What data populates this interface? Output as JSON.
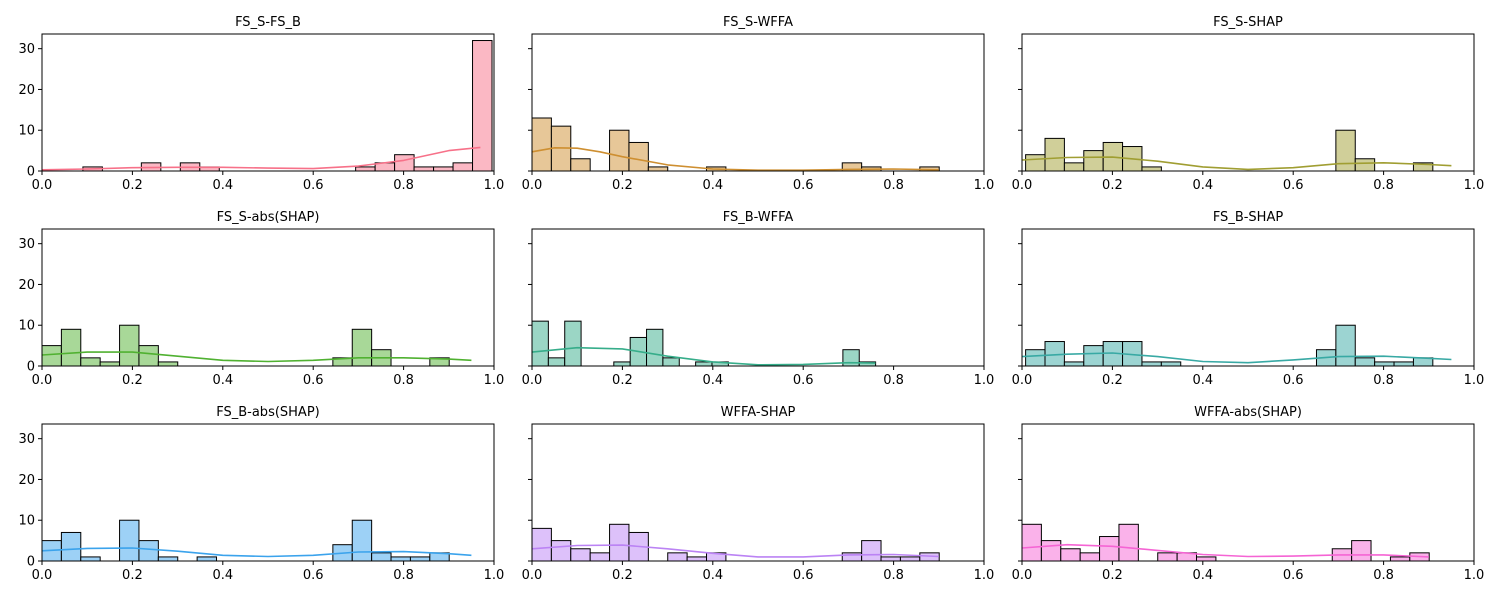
{
  "figure": {
    "x_ticks": [
      "0.0",
      "0.2",
      "0.4",
      "0.6",
      "0.8",
      "1.0"
    ],
    "y_ticks": [
      "0",
      "10",
      "20",
      "30"
    ]
  },
  "chart_data": [
    {
      "type": "histogram",
      "title": "FS_S-FS_B",
      "color": "#f77189",
      "xlim": [
        0,
        1
      ],
      "ylim": [
        0,
        33.6
      ],
      "bin_width": 0.0431,
      "bin_start": 0.0905,
      "counts": [
        1,
        0,
        0,
        2,
        0,
        2,
        1,
        0,
        0,
        0,
        0,
        0,
        0,
        0,
        1,
        2,
        4,
        1,
        1,
        2,
        32
      ],
      "kde_x": [
        0.0,
        0.1,
        0.2,
        0.3,
        0.4,
        0.5,
        0.6,
        0.7,
        0.8,
        0.9,
        0.97
      ],
      "kde_y": [
        0.3,
        0.5,
        0.8,
        0.9,
        0.9,
        0.7,
        0.6,
        1.2,
        2.6,
        5.0,
        5.8
      ]
    },
    {
      "type": "histogram",
      "title": "FS_S-WFFA",
      "color": "#ce8f31",
      "xlim": [
        0,
        1
      ],
      "ylim": [
        0,
        33.6
      ],
      "bin_width": 0.0429,
      "bin_start": 0.0,
      "counts": [
        13,
        11,
        3,
        0,
        10,
        7,
        1,
        0,
        0,
        1,
        0,
        0,
        0,
        0,
        0,
        0,
        2,
        1,
        0,
        0,
        1
      ],
      "kde_x": [
        0.0,
        0.05,
        0.1,
        0.15,
        0.2,
        0.3,
        0.4,
        0.5,
        0.6,
        0.7,
        0.8,
        0.9
      ],
      "kde_y": [
        4.7,
        5.7,
        5.6,
        4.7,
        3.5,
        1.5,
        0.5,
        0.2,
        0.2,
        0.4,
        0.5,
        0.3
      ]
    },
    {
      "type": "histogram",
      "title": "FS_S-SHAP",
      "color": "#a09e32",
      "xlim": [
        0,
        1
      ],
      "ylim": [
        0,
        33.6
      ],
      "bin_width": 0.0429,
      "bin_start": 0.008,
      "counts": [
        4,
        8,
        2,
        5,
        7,
        6,
        1,
        0,
        0,
        0,
        0,
        0,
        0,
        0,
        0,
        0,
        10,
        3,
        0,
        0,
        2
      ],
      "kde_x": [
        0.0,
        0.1,
        0.2,
        0.3,
        0.4,
        0.5,
        0.6,
        0.7,
        0.8,
        0.9,
        0.95
      ],
      "kde_y": [
        2.7,
        3.3,
        3.4,
        2.4,
        1.0,
        0.4,
        0.8,
        1.8,
        2.0,
        1.6,
        1.3
      ]
    },
    {
      "type": "histogram",
      "title": "FS_S-abs(SHAP)",
      "color": "#50b131",
      "xlim": [
        0,
        1
      ],
      "ylim": [
        0,
        33.6
      ],
      "bin_width": 0.0429,
      "bin_start": 0.0,
      "counts": [
        5,
        9,
        2,
        1,
        10,
        5,
        1,
        0,
        0,
        0,
        0,
        0,
        0,
        0,
        0,
        2,
        9,
        4,
        0,
        0,
        2
      ],
      "kde_x": [
        0.0,
        0.1,
        0.2,
        0.3,
        0.4,
        0.5,
        0.6,
        0.7,
        0.8,
        0.9,
        0.95
      ],
      "kde_y": [
        2.7,
        3.4,
        3.4,
        2.4,
        1.4,
        1.1,
        1.4,
        2.0,
        2.0,
        1.7,
        1.4
      ]
    },
    {
      "type": "histogram",
      "title": "FS_B-WFFA",
      "color": "#36ad8a",
      "xlim": [
        0,
        1
      ],
      "ylim": [
        0,
        33.6
      ],
      "bin_width": 0.0362,
      "bin_start": 0.0,
      "counts": [
        11,
        2,
        11,
        0,
        0,
        1,
        7,
        9,
        2,
        0,
        1,
        1,
        0,
        0,
        0,
        0,
        0,
        0,
        0,
        4,
        1
      ],
      "kde_x": [
        0.0,
        0.1,
        0.2,
        0.3,
        0.4,
        0.5,
        0.6,
        0.7,
        0.76
      ],
      "kde_y": [
        3.4,
        4.5,
        4.2,
        2.4,
        1.0,
        0.3,
        0.4,
        0.8,
        0.7
      ]
    },
    {
      "type": "histogram",
      "title": "FS_B-SHAP",
      "color": "#38a9a4",
      "xlim": [
        0,
        1
      ],
      "ylim": [
        0,
        33.6
      ],
      "bin_width": 0.0429,
      "bin_start": 0.008,
      "counts": [
        4,
        6,
        1,
        5,
        6,
        6,
        1,
        1,
        0,
        0,
        0,
        0,
        0,
        0,
        0,
        4,
        10,
        2,
        1,
        1,
        2
      ],
      "kde_x": [
        0.0,
        0.1,
        0.2,
        0.3,
        0.4,
        0.5,
        0.6,
        0.7,
        0.8,
        0.9,
        0.95
      ],
      "kde_y": [
        2.3,
        2.9,
        3.2,
        2.3,
        1.1,
        0.8,
        1.5,
        2.3,
        2.4,
        1.9,
        1.6
      ]
    },
    {
      "type": "histogram",
      "title": "FS_B-abs(SHAP)",
      "color": "#3ba3ec",
      "xlim": [
        0,
        1
      ],
      "ylim": [
        0,
        33.6
      ],
      "bin_width": 0.0429,
      "bin_start": 0.0,
      "counts": [
        5,
        7,
        1,
        0,
        10,
        5,
        1,
        0,
        1,
        0,
        0,
        0,
        0,
        0,
        0,
        4,
        10,
        2,
        1,
        1,
        2
      ],
      "kde_x": [
        0.0,
        0.1,
        0.2,
        0.3,
        0.4,
        0.5,
        0.6,
        0.7,
        0.8,
        0.9,
        0.95
      ],
      "kde_y": [
        2.5,
        3.1,
        3.2,
        2.4,
        1.4,
        1.1,
        1.4,
        2.2,
        2.3,
        1.8,
        1.4
      ]
    },
    {
      "type": "histogram",
      "title": "WFFA-SHAP",
      "color": "#bb83f4",
      "xlim": [
        0,
        1
      ],
      "ylim": [
        0,
        33.6
      ],
      "bin_width": 0.0429,
      "bin_start": 0.0,
      "counts": [
        8,
        5,
        3,
        2,
        9,
        7,
        0,
        2,
        1,
        2,
        0,
        0,
        0,
        0,
        0,
        0,
        2,
        5,
        1,
        1,
        2
      ],
      "kde_x": [
        0.0,
        0.1,
        0.2,
        0.3,
        0.4,
        0.5,
        0.6,
        0.7,
        0.8,
        0.9
      ],
      "kde_y": [
        3.0,
        3.8,
        3.9,
        3.0,
        1.9,
        1.0,
        1.0,
        1.5,
        1.6,
        1.1
      ]
    },
    {
      "type": "histogram",
      "title": "WFFA-abs(SHAP)",
      "color": "#f564d4",
      "xlim": [
        0,
        1
      ],
      "ylim": [
        0,
        33.6
      ],
      "bin_width": 0.0429,
      "bin_start": 0.0,
      "counts": [
        9,
        5,
        3,
        2,
        6,
        9,
        0,
        2,
        2,
        1,
        0,
        0,
        0,
        0,
        0,
        0,
        3,
        5,
        0,
        1,
        2
      ],
      "kde_x": [
        0.0,
        0.1,
        0.2,
        0.3,
        0.4,
        0.5,
        0.6,
        0.7,
        0.8,
        0.9
      ],
      "kde_y": [
        3.2,
        4.0,
        3.6,
        2.6,
        1.6,
        1.1,
        1.2,
        1.5,
        1.5,
        1.0
      ]
    }
  ]
}
